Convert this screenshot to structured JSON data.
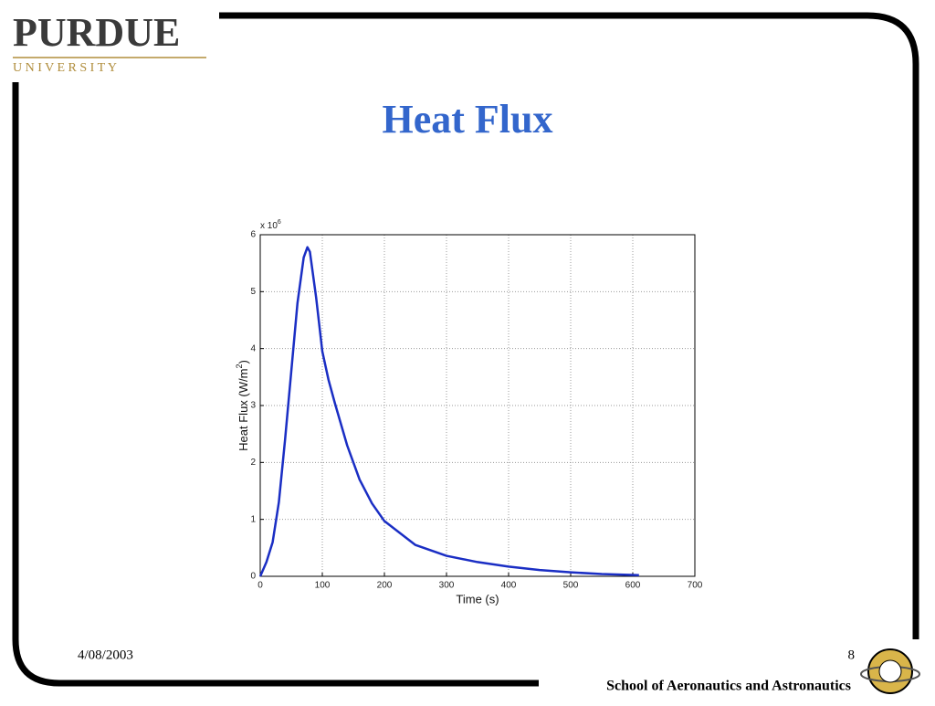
{
  "slide": {
    "logo_name": "PURDUE",
    "logo_sub": "U N I V E R S I T Y",
    "date": "4/08/2003",
    "page": 8,
    "footer": "School of Aeronautics and Astronautics"
  },
  "chart_data": {
    "type": "line",
    "title": "Heat Flux",
    "xlabel": "Time (s)",
    "ylabel": {
      "text": "Heat Flux (W/m",
      "sup": "2",
      "end": ")"
    },
    "y_multiplier": {
      "text": "x 10",
      "sup": "6"
    },
    "x": [
      0,
      10,
      20,
      30,
      40,
      50,
      60,
      70,
      76,
      80,
      90,
      100,
      110,
      120,
      140,
      160,
      180,
      200,
      250,
      300,
      350,
      400,
      450,
      500,
      550,
      610
    ],
    "values": [
      0,
      0.25,
      0.6,
      1.3,
      2.4,
      3.6,
      4.8,
      5.6,
      5.78,
      5.7,
      4.9,
      3.95,
      3.45,
      3.05,
      2.3,
      1.7,
      1.28,
      0.97,
      0.55,
      0.36,
      0.25,
      0.17,
      0.11,
      0.07,
      0.04,
      0.02
    ],
    "color": "#1a2ec4",
    "xlim": [
      0,
      700
    ],
    "xticks": [
      0,
      100,
      200,
      300,
      400,
      500,
      600,
      700
    ],
    "ylim": [
      0,
      6
    ],
    "yticks": [
      0,
      1,
      2,
      3,
      4,
      5,
      6
    ],
    "grid": true
  }
}
